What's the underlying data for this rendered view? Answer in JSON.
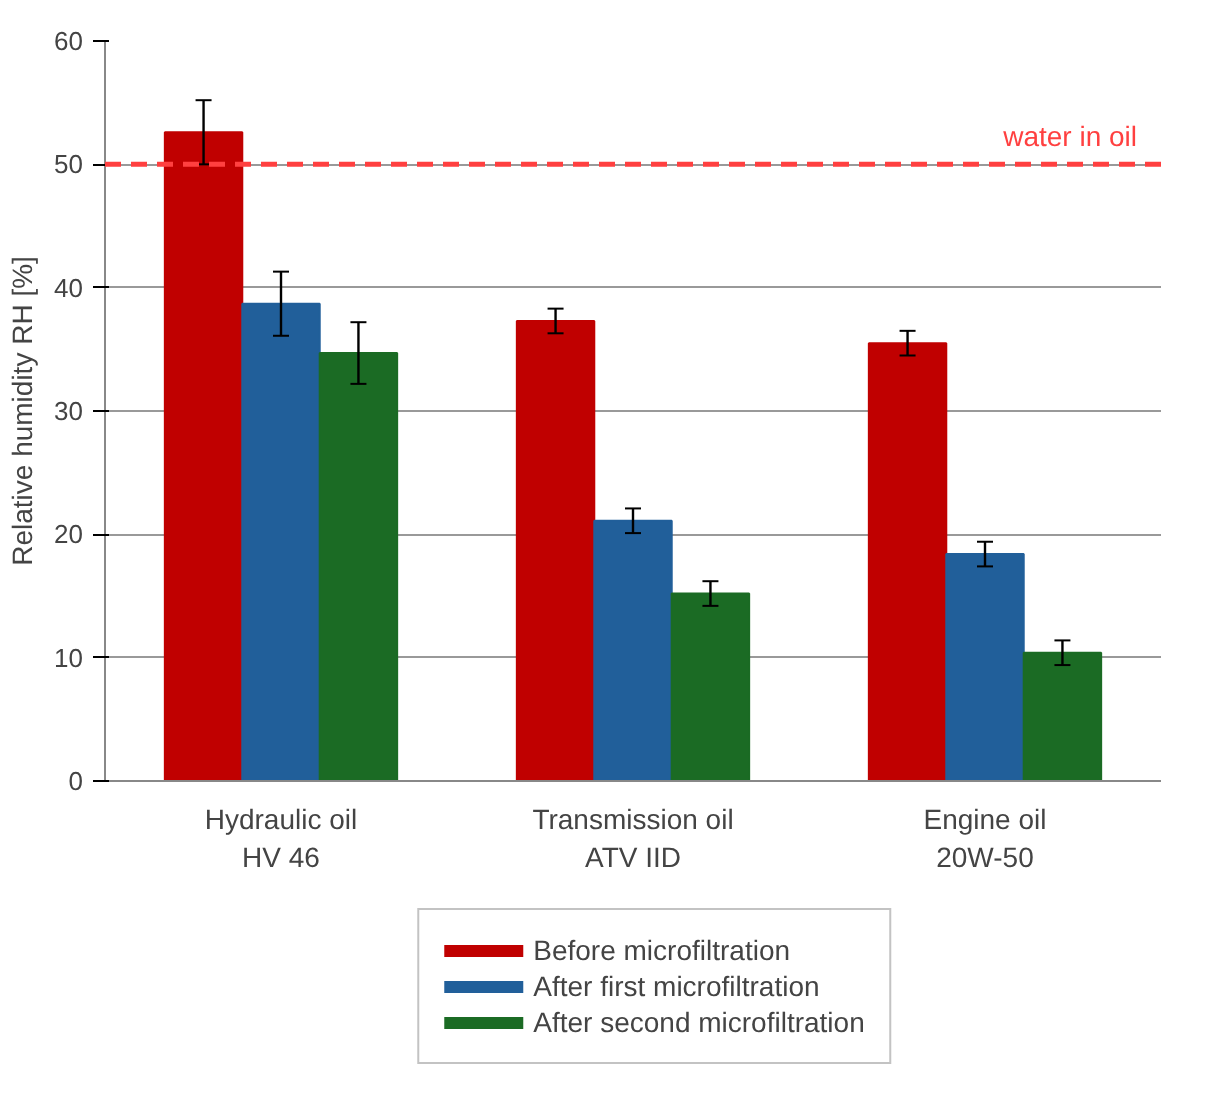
{
  "chart_data": {
    "type": "bar",
    "ylabel": "Relative humidity RH [%]",
    "categories": [
      "Hydraulic oil\nHV 46",
      "Transmission oil\nATV IID",
      "Engine oil\n20W-50"
    ],
    "series": [
      {
        "name": "Before microfiltration",
        "color": "#c00000",
        "values": [
          52.6,
          37.3,
          35.5
        ],
        "errors": [
          2.6,
          1.0,
          1.0
        ]
      },
      {
        "name": "After first microfiltration",
        "color": "#215f9a",
        "values": [
          38.7,
          21.1,
          18.4
        ],
        "errors": [
          2.6,
          1.0,
          1.0
        ]
      },
      {
        "name": "After second microfiltration",
        "color": "#1b6b24",
        "values": [
          34.7,
          15.2,
          10.4
        ],
        "errors": [
          2.5,
          1.0,
          1.0
        ]
      }
    ],
    "ylim": [
      0,
      60
    ],
    "yticks": [
      0,
      10,
      20,
      30,
      40,
      50,
      60
    ],
    "grid": "y",
    "legend": "bottom",
    "ref_lines": [
      {
        "axis": "y",
        "value": 50,
        "label": "water in oil",
        "color": "#ff4040",
        "line_style": "dashed"
      }
    ]
  }
}
